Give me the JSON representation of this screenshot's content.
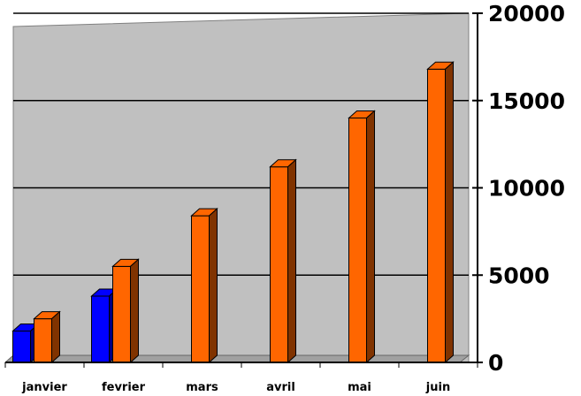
{
  "chart_data": {
    "type": "bar",
    "title": "",
    "xlabel": "",
    "ylabel": "",
    "categories": [
      "janvier",
      "fevrier",
      "mars",
      "avril",
      "mai",
      "juin"
    ],
    "series": [
      {
        "values": [
          1800,
          3800,
          null,
          null,
          null,
          null
        ],
        "color": "#0000ff"
      },
      {
        "values": [
          2500,
          5500,
          8400,
          11200,
          14000,
          16800
        ],
        "color": "#ff6600"
      }
    ],
    "ylim": [
      0,
      20000
    ],
    "yticks": [
      0,
      5000,
      10000,
      15000,
      20000
    ],
    "y_axis_side": "right",
    "grid": true,
    "legend": "none",
    "background_color": "#c0c0c0"
  }
}
